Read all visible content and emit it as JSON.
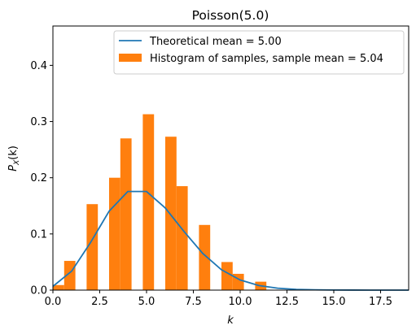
{
  "chart_data": {
    "type": "bar",
    "title": "Poisson(5.0)",
    "xlabel": "k",
    "ylabel": "P_X(k)",
    "ylabel_main": "P",
    "ylabel_sub": "X",
    "ylabel_tail": "(k)",
    "xlim": [
      0,
      19
    ],
    "ylim": [
      0,
      0.47
    ],
    "xticks": [
      0.0,
      2.5,
      5.0,
      7.5,
      10.0,
      12.5,
      15.0,
      17.5
    ],
    "xtick_labels": [
      "0.0",
      "2.5",
      "5.0",
      "7.5",
      "10.0",
      "12.5",
      "15.0",
      "17.5"
    ],
    "yticks": [
      0.0,
      0.1,
      0.2,
      0.3,
      0.4
    ],
    "ytick_labels": [
      "0.0",
      "0.1",
      "0.2",
      "0.3",
      "0.4"
    ],
    "legend_position": "top-right",
    "series": [
      {
        "name": "Theoretical mean = 5.00",
        "kind": "line",
        "color": "#1f77b4",
        "x": [
          0,
          1,
          2,
          3,
          4,
          5,
          6,
          7,
          8,
          9,
          10,
          11,
          12,
          13,
          14,
          15,
          16,
          17,
          18,
          19
        ],
        "y": [
          0.0067,
          0.0337,
          0.0842,
          0.1404,
          0.1755,
          0.1755,
          0.1462,
          0.1044,
          0.0653,
          0.0363,
          0.0181,
          0.0082,
          0.0034,
          0.0013,
          0.0005,
          0.0002,
          0.0001,
          0.0,
          0.0,
          0.0
        ]
      },
      {
        "name": "Histogram of samples, sample mean = 5.04",
        "kind": "histogram",
        "color": "#ff7f0e",
        "bins": [
          {
            "x0": 0.0,
            "x1": 0.6,
            "value": 0.009
          },
          {
            "x0": 0.6,
            "x1": 1.2,
            "value": 0.052
          },
          {
            "x0": 1.8,
            "x1": 2.4,
            "value": 0.153
          },
          {
            "x0": 3.0,
            "x1": 3.6,
            "value": 0.2
          },
          {
            "x0": 3.6,
            "x1": 4.2,
            "value": 0.27
          },
          {
            "x0": 4.8,
            "x1": 5.4,
            "value": 0.313
          },
          {
            "x0": 6.0,
            "x1": 6.6,
            "value": 0.273
          },
          {
            "x0": 6.6,
            "x1": 7.2,
            "value": 0.185
          },
          {
            "x0": 7.8,
            "x1": 8.4,
            "value": 0.116
          },
          {
            "x0": 9.0,
            "x1": 9.6,
            "value": 0.05
          },
          {
            "x0": 9.6,
            "x1": 10.2,
            "value": 0.029
          },
          {
            "x0": 10.8,
            "x1": 11.4,
            "value": 0.015
          }
        ]
      }
    ]
  }
}
